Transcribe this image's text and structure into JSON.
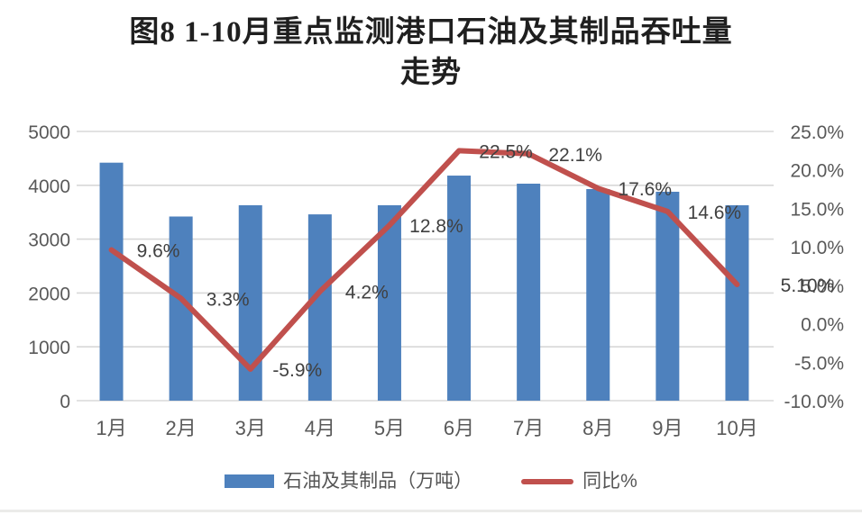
{
  "title": {
    "line1": "图8 1-10月重点监测港口石油及其制品吞吐量",
    "line2": "走势"
  },
  "chart_data": {
    "type": "combo-bar-line",
    "title": "图8 1-10月重点监测港口石油及其制品吞吐量走势",
    "categories": [
      "1月",
      "2月",
      "3月",
      "4月",
      "5月",
      "6月",
      "7月",
      "8月",
      "9月",
      "10月"
    ],
    "series": [
      {
        "name": "石油及其制品（万吨）",
        "type": "bar",
        "axis": "left",
        "values": [
          4420,
          3420,
          3630,
          3460,
          3630,
          4180,
          4030,
          3930,
          3880,
          3630
        ]
      },
      {
        "name": "同比%",
        "type": "line",
        "axis": "right",
        "values": [
          9.6,
          3.3,
          -5.9,
          4.2,
          12.8,
          22.5,
          22.1,
          17.6,
          14.6,
          5.1
        ],
        "point_labels": [
          "9.6%",
          "3.3%",
          "-5.9%",
          "4.2%",
          "12.8%",
          "22.5%",
          "22.1%",
          "17.6%",
          "14.6%",
          "5.10%"
        ]
      }
    ],
    "axes": {
      "left": {
        "min": 0,
        "max": 5000,
        "tick_step": 1000,
        "tick_labels": [
          "5000",
          "4000",
          "3000",
          "2000",
          "1000",
          "0"
        ]
      },
      "right": {
        "min": -10,
        "max": 25,
        "tick_labels": [
          "25.0%",
          "20.0%",
          "15.0%",
          "10.0%",
          "5.0%",
          "0.0%",
          "-5.0%",
          "-10.0%"
        ]
      }
    },
    "grid": true,
    "legend_position": "bottom"
  },
  "legend": {
    "bar_label": "石油及其制品（万吨）",
    "line_label": "同比%"
  },
  "colors": {
    "bar": "#4E81BD",
    "line": "#C0504D",
    "grid": "#D8D8D8",
    "axis_text": "#595959",
    "data_label": "#404040",
    "title_text": "#1F1F1F"
  }
}
